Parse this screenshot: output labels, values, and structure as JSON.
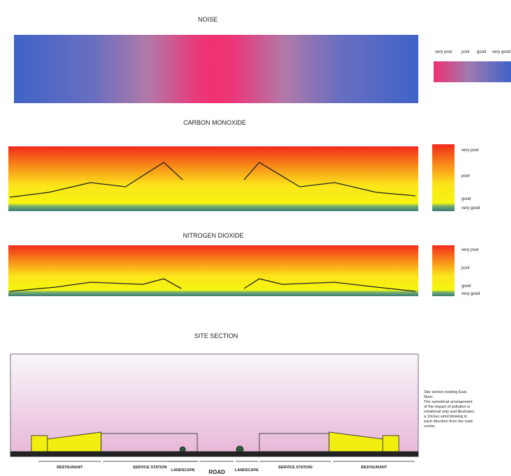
{
  "noise": {
    "title": "NOISE",
    "legend": [
      "very poor",
      "poor",
      "good",
      "very good"
    ]
  },
  "carbon_monoxide": {
    "title": "CARBON MONOXIDE",
    "legend": [
      "very poor",
      "poor",
      "good",
      "very good"
    ]
  },
  "nitrogen_dioxide": {
    "title": "NITROGEN DIOXIDE",
    "legend": [
      "very poor",
      "poor",
      "good",
      "very good"
    ]
  },
  "site_section": {
    "title": "SITE SECTION",
    "note": [
      "Site section looking East.",
      "Note:",
      "The symetrical arrangement",
      "of the impact of pollution is",
      "notational only and illustrates",
      "a 1m/sec wind blowing in",
      "each direction from the road",
      "centre."
    ],
    "zones": [
      "RESTAURANT",
      "SERVICE STATION",
      "LANDSCAPE",
      "ROAD",
      "LANDSCAPE",
      "SERVICE STATION",
      "RESTAURANT"
    ]
  }
}
